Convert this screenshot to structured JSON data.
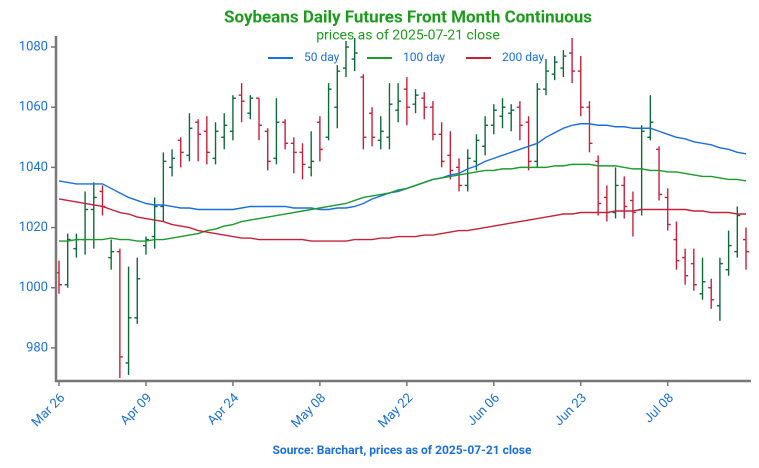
{
  "chart_data": {
    "type": "ohlc",
    "title": "Soybeans Daily Futures Front Month Continuous",
    "subtitle": "prices as of 2025-07-21 close",
    "source": "Source: Barchart, prices as of 2025-07-21 close",
    "categories": [
      "Mar 26",
      null,
      null,
      null,
      null,
      null,
      null,
      null,
      null,
      null,
      "Apr 09",
      null,
      null,
      null,
      null,
      null,
      null,
      null,
      null,
      null,
      "Apr 24",
      null,
      null,
      null,
      null,
      null,
      null,
      null,
      null,
      null,
      "May 08",
      null,
      null,
      null,
      null,
      null,
      null,
      null,
      null,
      null,
      "May 22",
      null,
      null,
      null,
      null,
      null,
      null,
      null,
      null,
      null,
      "Jun 06",
      null,
      null,
      null,
      null,
      null,
      null,
      null,
      null,
      null,
      "Jun 23",
      null,
      null,
      null,
      null,
      null,
      null,
      null,
      null,
      null,
      "Jul 08",
      null,
      null,
      null,
      null,
      null,
      null,
      null,
      null,
      null
    ],
    "open": [
      1005,
      1001,
      1013,
      1016,
      1026,
      1032,
      1010,
      1012,
      975,
      990,
      1014,
      1017,
      1027,
      1040,
      1049,
      1044,
      1055,
      1052,
      1043,
      1050,
      1052,
      1064,
      1058,
      1063,
      1052,
      1043,
      1055,
      1048,
      1045,
      1040,
      1055,
      1050,
      1060,
      1073,
      1076,
      1070,
      1058,
      1049,
      1050,
      1059,
      1066,
      1061,
      1063,
      1060,
      1051,
      1044,
      1040,
      1034,
      1042,
      1047,
      1054,
      1057,
      1058,
      1060,
      1055,
      1042,
      1066,
      1071,
      1073,
      1078,
      1072,
      1060,
      1042,
      1030,
      1025,
      1034,
      1029,
      1026,
      1050,
      1046,
      1030,
      1016,
      1010,
      1008,
      998,
      1000,
      994,
      1006,
      1012,
      1016
    ],
    "high": [
      1009,
      1018,
      1018,
      1032,
      1035,
      1034,
      1016,
      1013,
      1007,
      1010,
      1017,
      1030,
      1045,
      1046,
      1050,
      1058,
      1056,
      1057,
      1055,
      1058,
      1064,
      1068,
      1064,
      1063,
      1053,
      1063,
      1056,
      1050,
      1048,
      1052,
      1057,
      1068,
      1074,
      1082,
      1083,
      1071,
      1060,
      1057,
      1068,
      1068,
      1070,
      1066,
      1065,
      1062,
      1055,
      1052,
      1043,
      1046,
      1051,
      1057,
      1061,
      1063,
      1061,
      1062,
      1057,
      1068,
      1076,
      1077,
      1079,
      1083,
      1077,
      1062,
      1044,
      1034,
      1040,
      1037,
      1032,
      1054,
      1064,
      1047,
      1033,
      1022,
      1013,
      1013,
      1010,
      1003,
      1010,
      1019,
      1027,
      1020
    ],
    "low": [
      998,
      1000,
      1010,
      1011,
      1013,
      1024,
      1006,
      970,
      971,
      988,
      1011,
      1013,
      1022,
      1037,
      1040,
      1042,
      1042,
      1041,
      1041,
      1046,
      1049,
      1055,
      1056,
      1049,
      1039,
      1041,
      1046,
      1038,
      1036,
      1037,
      1042,
      1049,
      1053,
      1070,
      1072,
      1046,
      1047,
      1046,
      1046,
      1055,
      1054,
      1058,
      1056,
      1049,
      1040,
      1036,
      1032,
      1032,
      1039,
      1044,
      1051,
      1053,
      1052,
      1049,
      1039,
      1040,
      1064,
      1069,
      1070,
      1068,
      1057,
      1045,
      1024,
      1022,
      1023,
      1023,
      1017,
      1024,
      1049,
      1029,
      1019,
      1006,
      1001,
      999,
      996,
      993,
      989,
      1004,
      1010,
      1006
    ],
    "close": [
      1001,
      1016,
      1016,
      1026,
      1030,
      1027,
      1012,
      977,
      990,
      1003,
      1016,
      1027,
      1042,
      1043,
      1045,
      1053,
      1051,
      1045,
      1052,
      1054,
      1063,
      1062,
      1063,
      1054,
      1042,
      1055,
      1048,
      1045,
      1041,
      1042,
      1046,
      1066,
      1072,
      1080,
      1078,
      1050,
      1050,
      1052,
      1061,
      1062,
      1060,
      1064,
      1060,
      1051,
      1042,
      1039,
      1034,
      1043,
      1049,
      1054,
      1059,
      1060,
      1059,
      1054,
      1042,
      1066,
      1072,
      1075,
      1077,
      1072,
      1060,
      1048,
      1028,
      1025,
      1034,
      1027,
      1025,
      1052,
      1055,
      1031,
      1021,
      1009,
      1004,
      1001,
      1002,
      996,
      1008,
      1014,
      1024,
      1012
    ],
    "up_color": "#0b6b3a",
    "down_color": "#c8203a",
    "series": [
      {
        "name": "50 day",
        "color": "#1a6fdf",
        "values": [
          1035.5,
          1035,
          1034.5,
          1034.5,
          1034.5,
          1034.5,
          1033,
          1031.5,
          1030,
          1029,
          1028,
          1027.5,
          1027.5,
          1027,
          1026.5,
          1026.5,
          1026,
          1026,
          1026,
          1026,
          1026,
          1026.5,
          1027,
          1027,
          1027,
          1027,
          1027,
          1026.5,
          1026.5,
          1026.5,
          1026,
          1026,
          1026.5,
          1026.5,
          1027,
          1028,
          1029.5,
          1030.5,
          1031.5,
          1032,
          1033,
          1034,
          1035,
          1036,
          1036.5,
          1037.5,
          1038,
          1039.5,
          1040.5,
          1042,
          1043,
          1044,
          1045,
          1046,
          1047,
          1048,
          1050,
          1051.5,
          1053,
          1054,
          1054.5,
          1054.5,
          1054,
          1054,
          1053.5,
          1053.5,
          1053,
          1053,
          1053,
          1052,
          1051,
          1050,
          1049.5,
          1048.5,
          1048,
          1047.5,
          1046.5,
          1046,
          1045,
          1044.5
        ]
      },
      {
        "name": "100 day",
        "color": "#1a9c2a",
        "values": [
          1015.5,
          1015.5,
          1016,
          1016,
          1016,
          1016,
          1016.5,
          1016,
          1016,
          1015.5,
          1015.5,
          1016,
          1016,
          1016.5,
          1017,
          1017.5,
          1018,
          1019,
          1019.5,
          1020.5,
          1021,
          1022,
          1022.5,
          1023,
          1023.5,
          1024,
          1024.5,
          1025,
          1025.5,
          1026,
          1026.5,
          1027,
          1027.5,
          1028,
          1029,
          1030,
          1030.5,
          1031,
          1031.5,
          1032.5,
          1033,
          1034,
          1035,
          1036,
          1036.5,
          1037,
          1037.5,
          1038,
          1038.5,
          1039,
          1039,
          1039.5,
          1039.5,
          1040,
          1040,
          1040,
          1040,
          1040.5,
          1040.5,
          1041,
          1041,
          1041,
          1040.5,
          1040.5,
          1040.5,
          1040,
          1039.5,
          1039.5,
          1039,
          1039,
          1038.5,
          1038.5,
          1038,
          1037.5,
          1037,
          1037,
          1036.5,
          1036,
          1036,
          1035.5
        ]
      },
      {
        "name": "200 day",
        "color": "#c8203a",
        "values": [
          1029.5,
          1029,
          1028.5,
          1028,
          1027.5,
          1027,
          1026,
          1025,
          1024.5,
          1023.5,
          1023,
          1022.5,
          1022,
          1021,
          1020.5,
          1020,
          1019,
          1018.5,
          1018,
          1017.5,
          1017,
          1016.5,
          1016.5,
          1016,
          1016,
          1016,
          1016,
          1016,
          1016,
          1015.5,
          1015.5,
          1015.5,
          1015.5,
          1015.5,
          1016,
          1016,
          1016,
          1016.5,
          1016.5,
          1017,
          1017,
          1017,
          1017.5,
          1017.5,
          1018,
          1018.5,
          1019,
          1019,
          1019.5,
          1020,
          1020.5,
          1021,
          1021.5,
          1022,
          1022.5,
          1023,
          1023.5,
          1024,
          1024.5,
          1024.5,
          1025,
          1025,
          1025,
          1025,
          1025.5,
          1025.5,
          1025.5,
          1026,
          1026,
          1026,
          1026,
          1026,
          1026,
          1025.5,
          1025.5,
          1025,
          1025,
          1025,
          1024.5,
          1024.5
        ]
      }
    ],
    "ylim": [
      969,
      1083
    ],
    "yticks": [
      980,
      1000,
      1020,
      1040,
      1060,
      1080
    ],
    "tick_color": "#1a6fdf",
    "title_color": "#1a9c1a"
  }
}
